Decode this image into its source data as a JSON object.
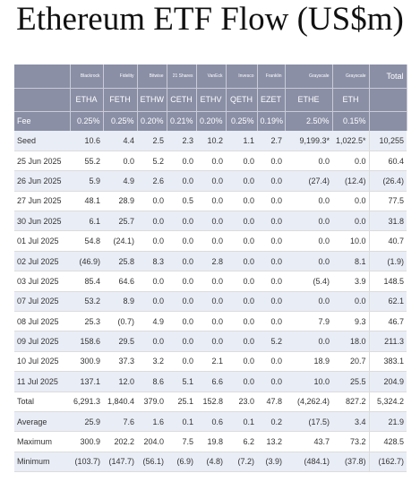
{
  "title": "Ethereum ETF Flow (US$m)",
  "colors": {
    "header_bg": "#8a8fa6",
    "shaded_row": "#e9edf6",
    "negative": "#c0392b"
  },
  "table": {
    "issuers": [
      "Blackrock",
      "Fidelity",
      "Bitwise",
      "21 Shares",
      "VanEck",
      "Invesco",
      "Franklin",
      "Grayscale",
      "Grayscale",
      "Total"
    ],
    "tickers": [
      "ETHA",
      "FETH",
      "ETHW",
      "CETH",
      "ETHV",
      "QETH",
      "EZET",
      "ETHE",
      "ETH",
      ""
    ],
    "fee": {
      "label": "Fee",
      "values": [
        "0.25%",
        "0.25%",
        "0.20%",
        "0.21%",
        "0.20%",
        "0.25%",
        "0.19%",
        "2.50%",
        "0.15%",
        ""
      ]
    },
    "rows": [
      {
        "label": "Seed",
        "values": [
          "10.6",
          "4.4",
          "2.5",
          "2.3",
          "10.2",
          "1.1",
          "2.7",
          "9,199.3*",
          "1,022.5*",
          "10,255"
        ]
      },
      {
        "label": "25 Jun 2025",
        "values": [
          "55.2",
          "0.0",
          "5.2",
          "0.0",
          "0.0",
          "0.0",
          "0.0",
          "0.0",
          "0.0",
          "60.4"
        ]
      },
      {
        "label": "26 Jun 2025",
        "values": [
          "5.9",
          "4.9",
          "2.6",
          "0.0",
          "0.0",
          "0.0",
          "0.0",
          "(27.4)",
          "(12.4)",
          "(26.4)"
        ]
      },
      {
        "label": "27 Jun 2025",
        "values": [
          "48.1",
          "28.9",
          "0.0",
          "0.5",
          "0.0",
          "0.0",
          "0.0",
          "0.0",
          "0.0",
          "77.5"
        ]
      },
      {
        "label": "30 Jun 2025",
        "values": [
          "6.1",
          "25.7",
          "0.0",
          "0.0",
          "0.0",
          "0.0",
          "0.0",
          "0.0",
          "0.0",
          "31.8"
        ]
      },
      {
        "label": "01 Jul 2025",
        "values": [
          "54.8",
          "(24.1)",
          "0.0",
          "0.0",
          "0.0",
          "0.0",
          "0.0",
          "0.0",
          "10.0",
          "40.7"
        ]
      },
      {
        "label": "02 Jul 2025",
        "values": [
          "(46.9)",
          "25.8",
          "8.3",
          "0.0",
          "2.8",
          "0.0",
          "0.0",
          "0.0",
          "8.1",
          "(1.9)"
        ]
      },
      {
        "label": "03 Jul 2025",
        "values": [
          "85.4",
          "64.6",
          "0.0",
          "0.0",
          "0.0",
          "0.0",
          "0.0",
          "(5.4)",
          "3.9",
          "148.5"
        ]
      },
      {
        "label": "07 Jul 2025",
        "values": [
          "53.2",
          "8.9",
          "0.0",
          "0.0",
          "0.0",
          "0.0",
          "0.0",
          "0.0",
          "0.0",
          "62.1"
        ]
      },
      {
        "label": "08 Jul 2025",
        "values": [
          "25.3",
          "(0.7)",
          "4.9",
          "0.0",
          "0.0",
          "0.0",
          "0.0",
          "7.9",
          "9.3",
          "46.7"
        ]
      },
      {
        "label": "09 Jul 2025",
        "values": [
          "158.6",
          "29.5",
          "0.0",
          "0.0",
          "0.0",
          "0.0",
          "5.2",
          "0.0",
          "18.0",
          "211.3"
        ]
      },
      {
        "label": "10 Jul 2025",
        "values": [
          "300.9",
          "37.3",
          "3.2",
          "0.0",
          "2.1",
          "0.0",
          "0.0",
          "18.9",
          "20.7",
          "383.1"
        ]
      },
      {
        "label": "11 Jul 2025",
        "values": [
          "137.1",
          "12.0",
          "8.6",
          "5.1",
          "6.6",
          "0.0",
          "0.0",
          "10.0",
          "25.5",
          "204.9"
        ]
      },
      {
        "label": "Total",
        "values": [
          "6,291.3",
          "1,840.4",
          "379.0",
          "25.1",
          "152.8",
          "23.0",
          "47.8",
          "(4,262.4)",
          "827.2",
          "5,324.2"
        ]
      },
      {
        "label": "Average",
        "values": [
          "25.9",
          "7.6",
          "1.6",
          "0.1",
          "0.6",
          "0.1",
          "0.2",
          "(17.5)",
          "3.4",
          "21.9"
        ]
      },
      {
        "label": "Maximum",
        "values": [
          "300.9",
          "202.2",
          "204.0",
          "7.5",
          "19.8",
          "6.2",
          "13.2",
          "43.7",
          "73.2",
          "428.5"
        ]
      },
      {
        "label": "Minimum",
        "values": [
          "(103.7)",
          "(147.7)",
          "(56.1)",
          "(6.9)",
          "(4.8)",
          "(7.2)",
          "(3.9)",
          "(484.1)",
          "(37.8)",
          "(162.7)"
        ]
      }
    ]
  }
}
